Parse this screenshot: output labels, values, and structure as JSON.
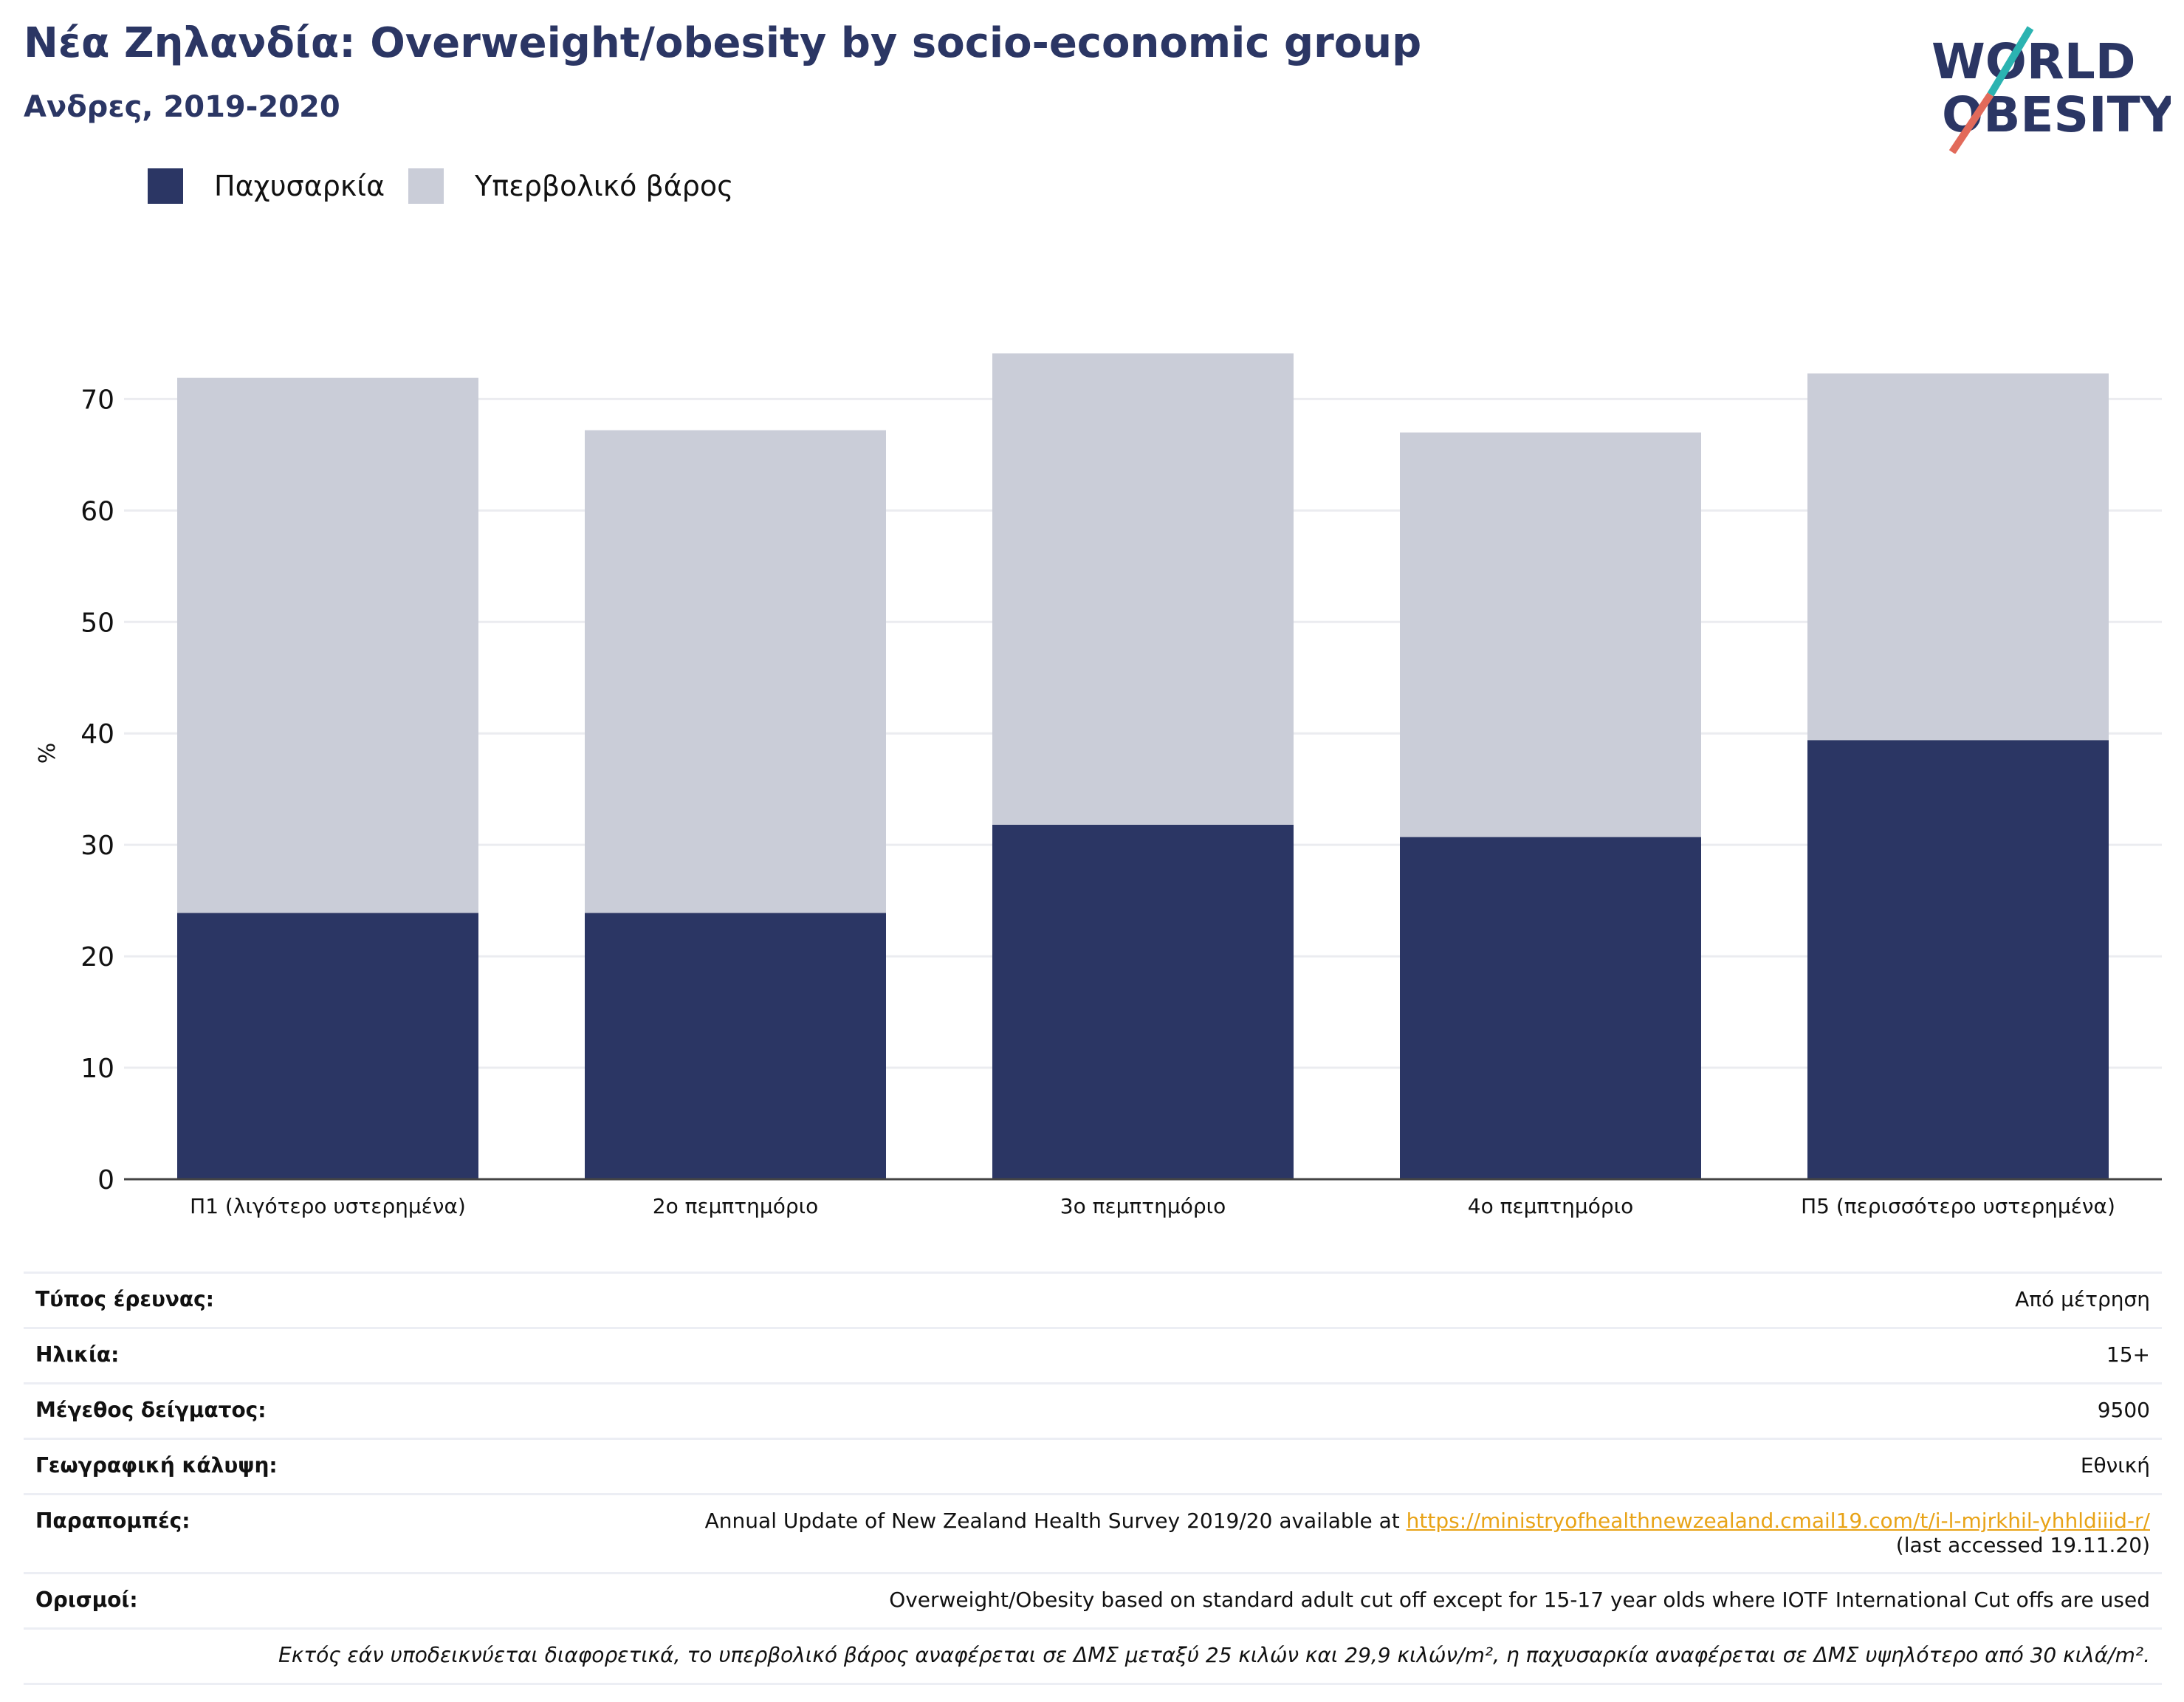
{
  "header": {
    "title": "Νέα Ζηλανδία: Overweight/obesity by socio-economic group",
    "subtitle": "Ανδρες, 2019-2020",
    "logo_text_line1": "WORLD",
    "logo_text_line2": "OBESITY"
  },
  "colors": {
    "obesity": "#2b3664",
    "overweight": "#cacdd8",
    "brand": "#2b3664",
    "accent_teal": "#2bb3b1",
    "accent_red": "#e26a5a",
    "link": "#e8a317"
  },
  "chart_data": {
    "type": "bar",
    "stacked": true,
    "categories": [
      "Π1 (λιγότερο υστερημένα)",
      "2ο πεμπτημόριο",
      "3ο πεμπτημόριο",
      "4ο πεμπτημόριο",
      "Π5 (περισσότερο υστερημένα)"
    ],
    "series": [
      {
        "name": "Παχυσαρκία",
        "values": [
          23.9,
          23.9,
          31.8,
          30.7,
          39.4
        ]
      },
      {
        "name": "Υπερβολικό βάρος",
        "values": [
          48.0,
          43.3,
          42.3,
          36.3,
          32.9
        ]
      }
    ],
    "ylabel": "%",
    "ylim": [
      0,
      74
    ],
    "yticks": [
      0,
      10,
      20,
      30,
      40,
      50,
      60,
      70
    ],
    "grid": true,
    "legend": "top-left"
  },
  "meta": {
    "survey_type_label": "Τύπος έρευνας:",
    "survey_type_value": "Από μέτρηση",
    "age_label": "Ηλικία:",
    "age_value": "15+",
    "sample_label": "Μέγεθος δείγματος:",
    "sample_value": "9500",
    "coverage_label": "Γεωγραφική κάλυψη:",
    "coverage_value": "Εθνική",
    "refs_label": "Παραπομπές:",
    "refs_text": "Annual Update of New Zealand Health Survey 2019/20 available at ",
    "refs_link": "https://ministryofhealthnewzealand.cmail19.com/t/i-l-mjrkhil-yhhldiiid-r/",
    "refs_accessed": "(last accessed 19.11.20)",
    "definitions_label": "Ορισμοί:",
    "definitions_value": "Overweight/Obesity based on standard adult cut off except for 15-17 year olds where IOTF International Cut offs are used",
    "note": "Εκτός εάν υποδεικνύεται διαφορετικά, το υπερβολικό βάρος αναφέρεται σε ΔΜΣ μεταξύ 25 κιλών και 29,9 κιλών/m², η παχυσαρκία αναφέρεται σε ΔΜΣ υψηλότερο από 30 κιλά/m²."
  }
}
